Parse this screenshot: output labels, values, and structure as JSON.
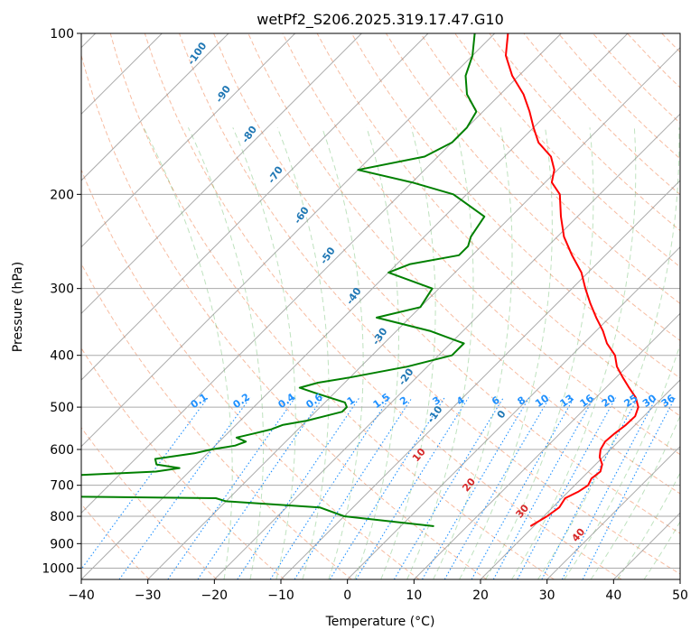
{
  "chart_data": {
    "type": "line",
    "diagram": "skew-T log-P",
    "title": "wetPf2_S206.2025.319.17.47.G10",
    "xlabel": "Temperature (°C)",
    "ylabel": "Pressure (hPa)",
    "xlim": [
      -40,
      50
    ],
    "ylim_pressure": [
      1050,
      100
    ],
    "y_scale": "log",
    "x_ticks": [
      "−40",
      "−30",
      "−20",
      "−10",
      "0",
      "10",
      "20",
      "30",
      "40",
      "50"
    ],
    "y_ticks": [
      "100",
      "200",
      "300",
      "400",
      "500",
      "600",
      "700",
      "800",
      "900",
      "1000"
    ],
    "grid": true,
    "series": [
      {
        "color": "#ff0000",
        "p": [
          835,
          800,
          770,
          740,
          720,
          700,
          680,
          660,
          640,
          620,
          600,
          580,
          560,
          540,
          520,
          500,
          480,
          460,
          440,
          420,
          400,
          380,
          360,
          340,
          320,
          300,
          280,
          260,
          240,
          220,
          200,
          190,
          180,
          170,
          160,
          150,
          140,
          130,
          120,
          110,
          100
        ],
        "t": [
          19.5,
          20.5,
          21,
          20.5,
          21.5,
          22,
          21.5,
          21.8,
          21,
          19.5,
          18.5,
          18,
          18.2,
          18.6,
          18.7,
          17.8,
          16,
          13.5,
          11,
          8.5,
          6.5,
          3.5,
          1,
          -2,
          -5,
          -8,
          -11,
          -15,
          -19,
          -22.5,
          -26,
          -29,
          -30.5,
          -33,
          -37,
          -40,
          -43,
          -46.5,
          -51,
          -55,
          -58
        ]
      },
      {
        "color": "#008000",
        "p": [
          835,
          800,
          770,
          750,
          740,
          735,
          725,
          700,
          670,
          660,
          650,
          640,
          625,
          610,
          600,
          590,
          580,
          570,
          560,
          550,
          540,
          530,
          520,
          510,
          500,
          490,
          480,
          470,
          460,
          450,
          440,
          420,
          400,
          380,
          360,
          340,
          325,
          300,
          280,
          270,
          260,
          250,
          240,
          220,
          200,
          190,
          180,
          170,
          160,
          150,
          140,
          130,
          120,
          110,
          100
        ],
        "t": [
          5,
          -10,
          -15,
          -30,
          -32,
          -55,
          -57,
          -58,
          -56,
          -45,
          -42,
          -46,
          -47,
          -42,
          -40,
          -37,
          -36,
          -38,
          -36,
          -34,
          -33,
          -30,
          -28,
          -26,
          -26,
          -27,
          -30,
          -33,
          -36,
          -34,
          -30,
          -23,
          -18,
          -18,
          -25,
          -35,
          -30,
          -31,
          -40,
          -38,
          -32,
          -32,
          -33,
          -34,
          -42,
          -50,
          -60,
          -52,
          -50,
          -50,
          -51,
          -55,
          -58,
          -60,
          -63
        ]
      }
    ],
    "mixing_ratio_labels": [
      "0.1",
      "0.2",
      "0.4",
      "0.6",
      "1",
      "1.5",
      "2",
      "3",
      "4",
      "6",
      "8",
      "10",
      "13",
      "16",
      "20",
      "25",
      "30",
      "36"
    ],
    "dry_adiabat_labels": [
      "-100",
      "-90",
      "-80",
      "-70",
      "-60",
      "-50",
      "-40",
      "-30",
      "-20",
      "-10",
      "0"
    ],
    "moist_adiabat_labels": [
      "10",
      "20",
      "30",
      "40"
    ]
  }
}
